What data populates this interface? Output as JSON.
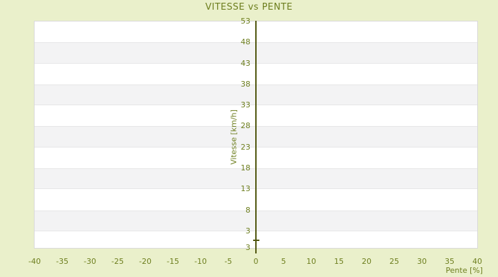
{
  "title": "VITESSE vs PENTE",
  "colors": {
    "page_background": "#eaf0cb",
    "text_olive": "#6d7e1e",
    "axis_line": "#4f550e",
    "stripe_white": "#ffffff",
    "stripe_gray": "#f3f3f4",
    "plot_border": "#d9d9d9"
  },
  "chart_data": {
    "type": "scatter",
    "title": "VITESSE vs PENTE",
    "xlabel": "Pente [%]",
    "ylabel": "Vitesse [km/h]",
    "xlim": [
      -40,
      40
    ],
    "ylim": [
      -1,
      53
    ],
    "x_ticks": [
      -40,
      -35,
      -30,
      -25,
      -20,
      -15,
      -10,
      -5,
      0,
      5,
      10,
      15,
      20,
      25,
      30,
      35,
      40
    ],
    "y_ticks": [
      53,
      48,
      43,
      38,
      33,
      28,
      23,
      18,
      13,
      8,
      3
    ],
    "y_axis_end_label": "3",
    "grid": "horizontal alternating bands at each y tick, no vertical gridlines",
    "legend": "none",
    "y_axis_position": "drawn vertically at x=0 inside the plot, tick labels to its left",
    "series": [
      {
        "name": "vitesse-vs-pente",
        "points": [
          [
            0,
            0.8
          ]
        ],
        "marker": "small horizontal dash on the x=0 axis"
      }
    ]
  }
}
